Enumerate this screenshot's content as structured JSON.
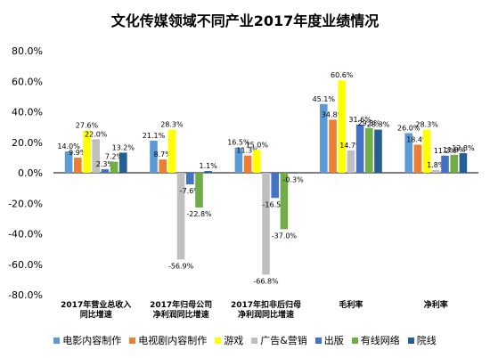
{
  "chart_data": {
    "type": "bar",
    "title": "文化传媒领域不同产业2017年度业绩情况",
    "categories": [
      [
        "2017年营业总收入",
        "同比增速"
      ],
      [
        "2017年归母公司",
        "净利润同比增速"
      ],
      [
        "2017年扣非后归母",
        "净利润同比增速"
      ],
      [
        "毛利率"
      ],
      [
        "净利率"
      ]
    ],
    "ylim": [
      -80,
      80
    ],
    "yticks": [
      "80.0%",
      "60.0%",
      "40.0%",
      "20.0%",
      "0.0%",
      "-20.0%",
      "-40.0%",
      "-60.0%",
      "-80.0%"
    ],
    "ytick_values": [
      80,
      60,
      40,
      20,
      0,
      -20,
      -40,
      -60,
      -80
    ],
    "series": [
      {
        "name": "电影内容制作",
        "color": "#5b9bd5",
        "values": [
          14.0,
          21.1,
          16.5,
          45.1,
          26.0
        ],
        "labels": [
          "14.0%",
          "21.1%",
          "16.5%",
          "45.1%",
          "26.0%"
        ]
      },
      {
        "name": "电视剧内容制作",
        "color": "#ed7d31",
        "values": [
          9.9,
          8.7,
          11.3,
          34.8,
          18.4
        ],
        "labels": [
          "9.9%",
          "8.7%",
          "11.3%",
          "34.8%",
          "18.4%"
        ]
      },
      {
        "name": "游戏",
        "color": "#ffff00",
        "values": [
          27.6,
          28.3,
          15.0,
          60.6,
          28.3
        ],
        "labels": [
          "27.6%",
          "28.3%",
          "15.0%",
          "60.6%",
          "28.3%"
        ]
      },
      {
        "name": "广告&营销",
        "color": "#bfbfbf",
        "values": [
          22.0,
          -56.9,
          -66.8,
          14.7,
          1.8
        ],
        "labels": [
          "22.0%",
          "-56.9%",
          "-66.8%",
          "14.7%",
          "1.8%"
        ]
      },
      {
        "name": "出版",
        "color": "#4472c4",
        "values": [
          2.3,
          -7.6,
          -16.5,
          31.6,
          11.2
        ],
        "labels": [
          "2.3%",
          "-7.6%",
          "-16.5%",
          "31.6%",
          "11.2%"
        ]
      },
      {
        "name": "有线网络",
        "color": "#70ad47",
        "values": [
          7.2,
          -22.8,
          -37.0,
          29.3,
          11.8
        ],
        "labels": [
          "7.2%",
          "-22.8%",
          "-37.0%",
          "29.3%",
          "11.8%"
        ]
      },
      {
        "name": "院线",
        "color": "#255e91",
        "values": [
          13.2,
          1.1,
          -0.3,
          28.3,
          12.8
        ],
        "labels": [
          "13.2%",
          "1.1%",
          "-0.3%",
          "28.3%",
          "12.8%"
        ]
      }
    ],
    "grid": false,
    "legend": "bottom"
  }
}
